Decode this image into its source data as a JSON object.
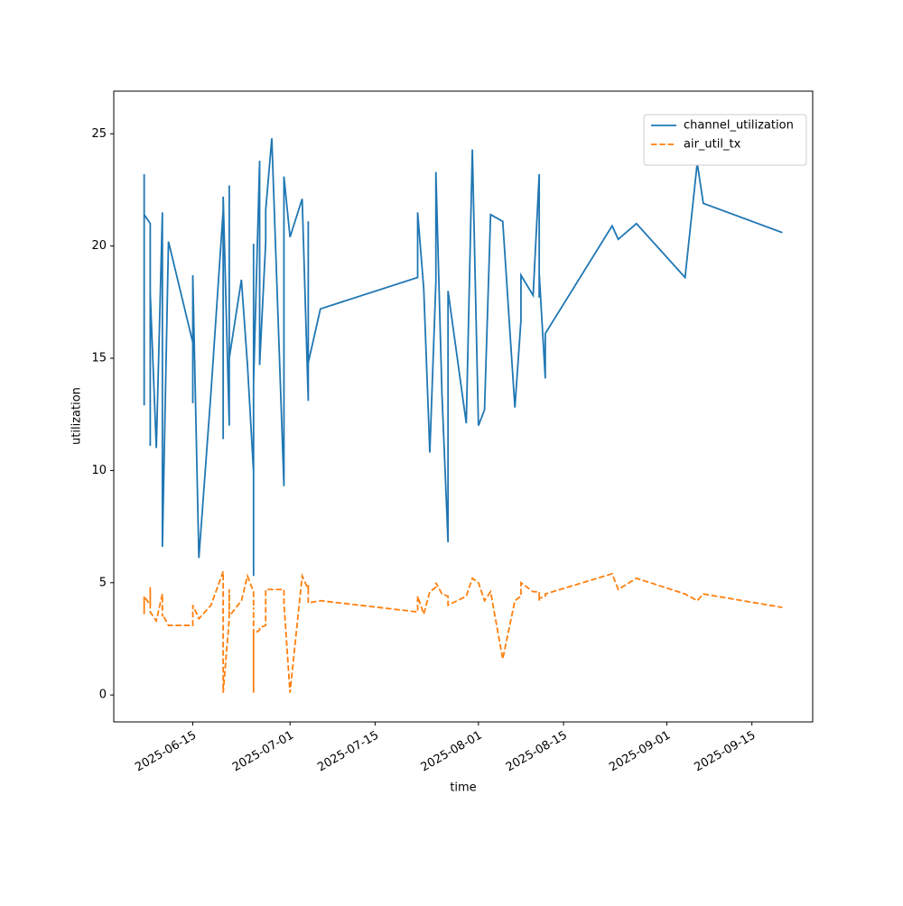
{
  "chart_data": {
    "type": "line",
    "x_label": "time",
    "y_label": "utilization",
    "x": [
      "2025-06-07",
      "2025-06-07",
      "2025-06-07",
      "2025-06-08",
      "2025-06-08",
      "2025-06-08",
      "2025-06-09",
      "2025-06-10",
      "2025-06-10",
      "2025-06-10",
      "2025-06-11",
      "2025-06-15",
      "2025-06-15",
      "2025-06-15",
      "2025-06-16",
      "2025-06-18",
      "2025-06-20",
      "2025-06-20",
      "2025-06-20",
      "2025-06-21",
      "2025-06-21",
      "2025-06-21",
      "2025-06-21",
      "2025-06-23",
      "2025-06-24",
      "2025-06-25",
      "2025-06-25",
      "2025-06-25",
      "2025-06-25",
      "2025-06-25",
      "2025-06-26",
      "2025-06-26",
      "2025-06-27",
      "2025-06-27",
      "2025-06-28",
      "2025-06-30",
      "2025-06-30",
      "2025-07-01",
      "2025-07-03",
      "2025-07-04",
      "2025-07-04",
      "2025-07-04",
      "2025-07-06",
      "2025-07-22",
      "2025-07-22",
      "2025-07-23",
      "2025-07-24",
      "2025-07-25",
      "2025-07-25",
      "2025-07-26",
      "2025-07-27",
      "2025-07-27",
      "2025-07-30",
      "2025-07-31",
      "2025-08-01",
      "2025-08-02",
      "2025-08-03",
      "2025-08-05",
      "2025-08-07",
      "2025-08-08",
      "2025-08-08",
      "2025-08-10",
      "2025-08-11",
      "2025-08-11",
      "2025-08-11",
      "2025-08-12",
      "2025-08-12",
      "2025-08-23",
      "2025-08-24",
      "2025-08-27",
      "2025-09-04",
      "2025-09-06",
      "2025-09-07",
      "2025-09-20"
    ],
    "series": [
      {
        "name": "channel_utilization",
        "color": "#1f77b4",
        "dash": "solid",
        "values": [
          12.9,
          23.2,
          21.4,
          21.0,
          11.1,
          17.9,
          11.0,
          21.5,
          11.5,
          6.6,
          20.2,
          15.7,
          13.0,
          18.7,
          6.1,
          13.5,
          21.6,
          11.4,
          22.2,
          12.0,
          16.8,
          22.7,
          15.0,
          18.5,
          14.7,
          9.9,
          10.5,
          5.3,
          20.1,
          13.9,
          23.8,
          14.7,
          20.2,
          21.6,
          24.8,
          9.3,
          23.1,
          20.4,
          22.1,
          13.1,
          21.1,
          14.8,
          17.2,
          18.6,
          21.5,
          18.1,
          10.8,
          18.4,
          23.3,
          13.4,
          6.8,
          18.0,
          12.1,
          24.3,
          12.0,
          12.7,
          21.4,
          21.1,
          12.8,
          16.7,
          18.7,
          17.8,
          23.2,
          17.7,
          18.8,
          14.1,
          16.1,
          20.9,
          20.3,
          21.0,
          18.6,
          23.7,
          21.9,
          20.6
        ]
      },
      {
        "name": "air_util_tx",
        "color": "#ff7f0e",
        "dash": "dashed",
        "values": [
          4.2,
          3.6,
          4.4,
          4.0,
          4.8,
          3.7,
          3.3,
          4.5,
          3.5,
          3.6,
          3.1,
          3.1,
          3.6,
          4.0,
          3.4,
          4.0,
          5.5,
          3.0,
          0.1,
          3.4,
          4.7,
          3.5,
          3.5,
          4.2,
          5.3,
          4.6,
          3.8,
          3.9,
          0.1,
          2.7,
          2.9,
          3.0,
          3.1,
          4.7,
          4.7,
          4.7,
          4.1,
          0.1,
          5.3,
          4.7,
          4.9,
          4.1,
          4.2,
          3.7,
          4.4,
          3.6,
          4.6,
          4.8,
          5.0,
          4.5,
          4.4,
          4.0,
          4.4,
          5.2,
          5.0,
          4.2,
          4.6,
          1.6,
          4.2,
          4.4,
          5.0,
          4.6,
          4.6,
          4.2,
          4.3,
          4.4,
          4.5,
          5.4,
          4.7,
          5.2,
          4.5,
          4.2,
          4.5,
          3.9
        ]
      }
    ],
    "xlim": [
      "2025-06-02",
      "2025-09-25"
    ],
    "xticks": [
      "2025-06-15",
      "2025-07-01",
      "2025-07-15",
      "2025-08-01",
      "2025-08-15",
      "2025-09-01",
      "2025-09-15"
    ],
    "ylim": [
      -1.2,
      26.9
    ],
    "yticks": [
      0,
      5,
      10,
      15,
      20,
      25
    ],
    "grid": false,
    "legend": "upper right"
  }
}
